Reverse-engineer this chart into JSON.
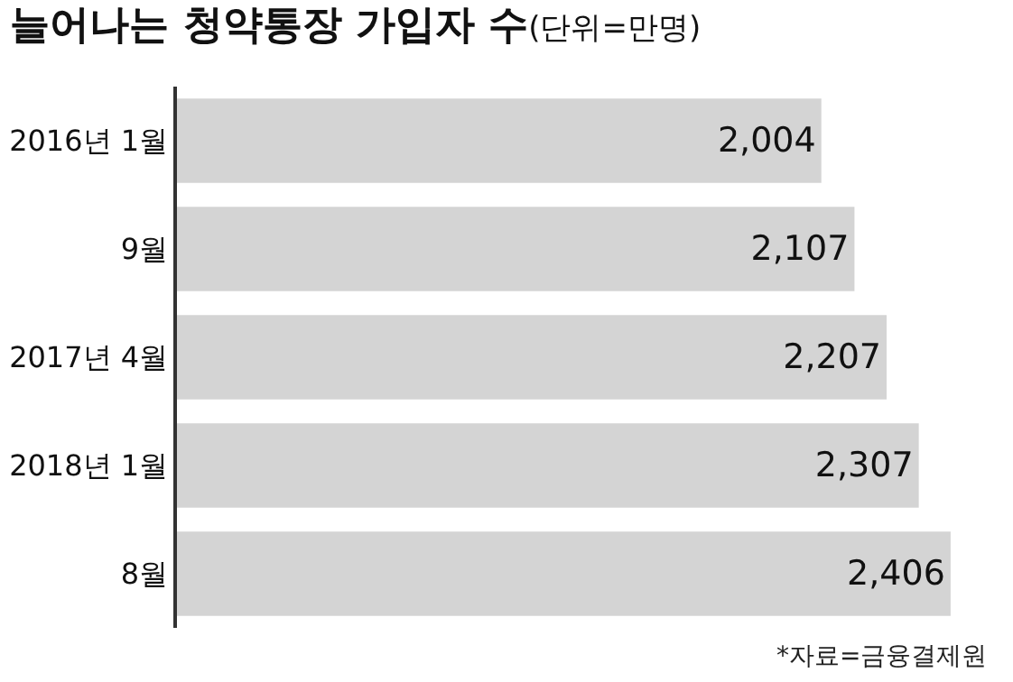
{
  "chart_data": {
    "type": "bar",
    "orientation": "horizontal",
    "title": "늘어나는 청약통장 가입자 수",
    "subtitle": "(단위=만명)",
    "categories": [
      "2016년 1월",
      "9월",
      "2017년 4월",
      "2018년 1월",
      "8월"
    ],
    "values": [
      2004,
      2107,
      2207,
      2307,
      2406
    ],
    "value_labels": [
      "2,004",
      "2,107",
      "2,207",
      "2,307",
      "2,406"
    ],
    "color": "#d4d4d4",
    "tick_labels": "y",
    "annotations": [
      "*자료=금융결제원"
    ]
  }
}
